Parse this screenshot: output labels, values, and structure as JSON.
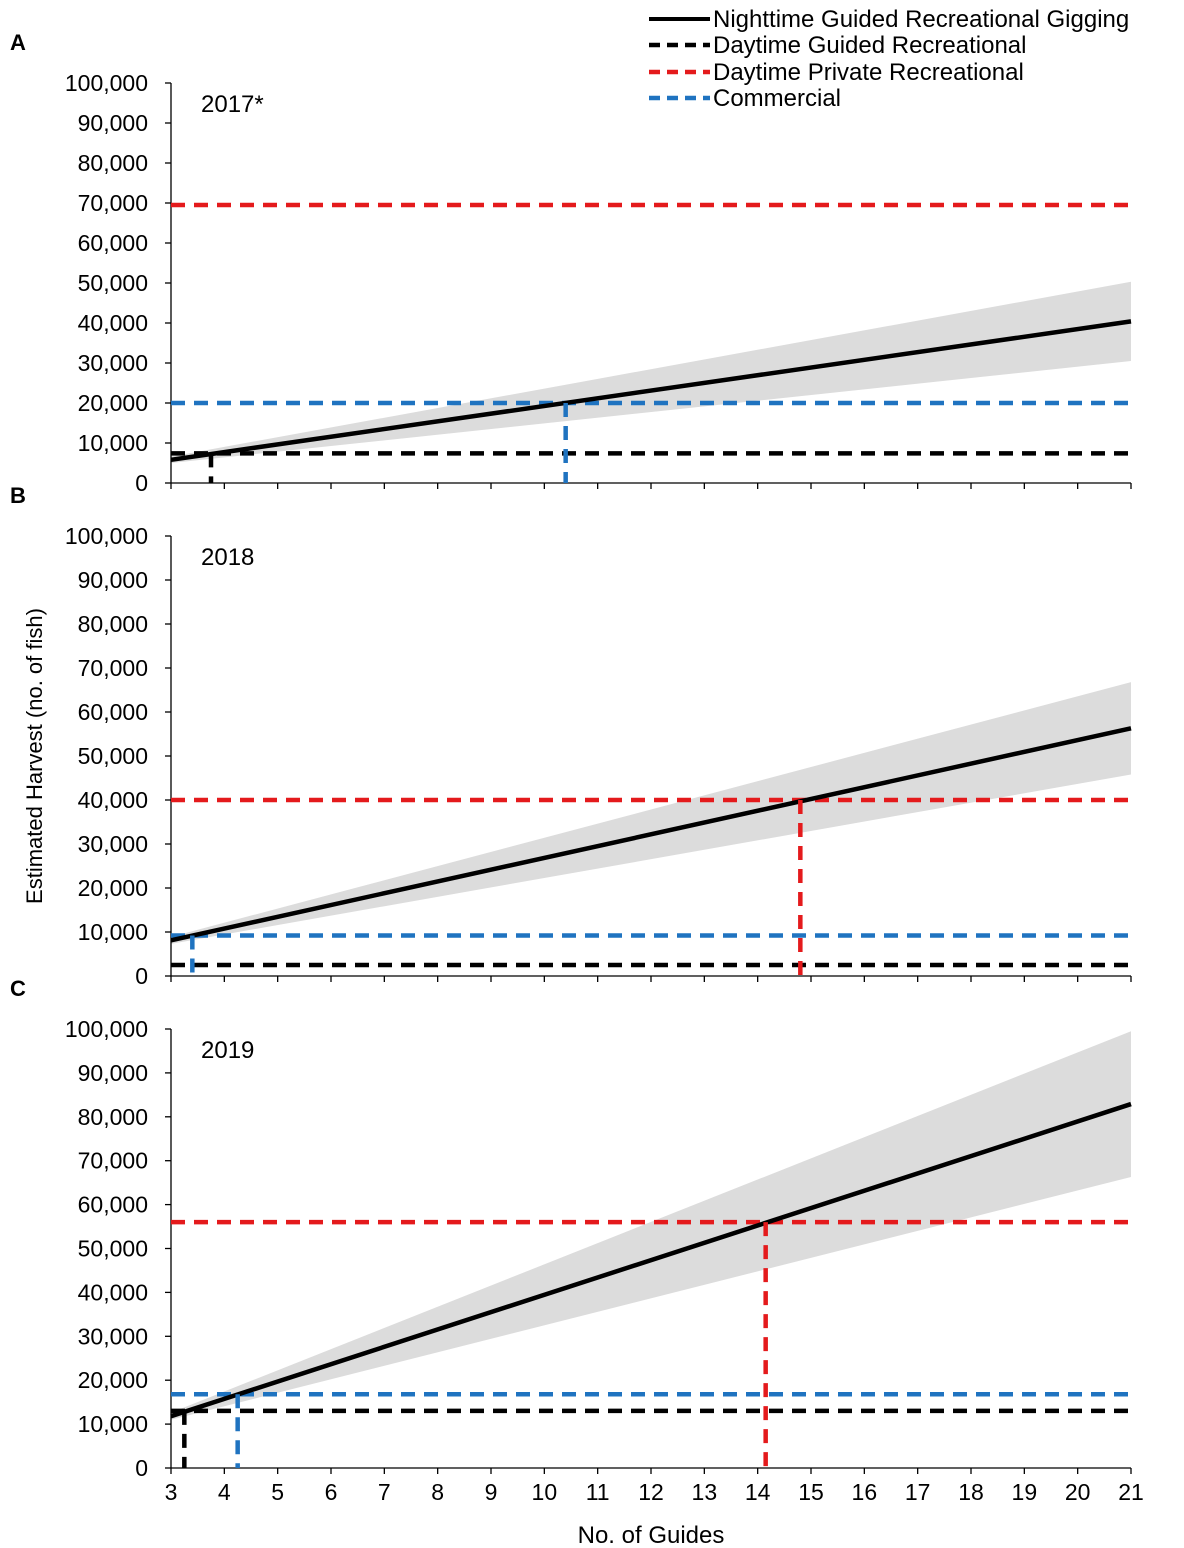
{
  "legend": {
    "placement": "top-right",
    "items": [
      {
        "label": "Nighttime Guided Recreational Gigging",
        "color": "#000000",
        "dash": "solid"
      },
      {
        "label": "Daytime Guided Recreational",
        "color": "#000000",
        "dash": "dashed"
      },
      {
        "label": "Daytime Private Recreational",
        "color": "#e41a1c",
        "dash": "dashed"
      },
      {
        "label": "Commercial",
        "color": "#1f73c0",
        "dash": "dashed"
      }
    ]
  },
  "colors": {
    "nighttime": "#000000",
    "daytime_guided": "#000000",
    "daytime_private": "#e41a1c",
    "commercial": "#1f73c0",
    "confidence_band": "#dcdcdc"
  },
  "ylabel": "Estimated Harvest (no. of fish)",
  "xlabel": "No. of Guides",
  "chart_data": [
    {
      "type": "line",
      "panel_letter": "A",
      "year_label": "2017*",
      "xlim": [
        3,
        21
      ],
      "ylim": [
        0,
        100000
      ],
      "x_ticks": [
        3,
        4,
        5,
        6,
        7,
        8,
        9,
        10,
        11,
        12,
        13,
        14,
        15,
        16,
        17,
        18,
        19,
        20,
        21
      ],
      "y_ticks": [
        0,
        10000,
        20000,
        30000,
        40000,
        50000,
        60000,
        70000,
        80000,
        90000,
        100000
      ],
      "y_tick_labels": [
        "0",
        "10,000",
        "20,000",
        "30,000",
        "40,000",
        "50,000",
        "60,000",
        "70,000",
        "80,000",
        "90,000",
        "100,000"
      ],
      "x_tick_labels_shown": false,
      "grid": false,
      "series": [
        {
          "name": "Nighttime Guided Recreational Gigging",
          "x": [
            3,
            21
          ],
          "y": [
            5800,
            40400
          ],
          "band_lower": [
            5000,
            30500
          ],
          "band_upper": [
            6600,
            50300
          ]
        },
        {
          "name": "Daytime Guided Recreational",
          "value": 7400,
          "intersect_x": 3.75
        },
        {
          "name": "Daytime Private Recreational",
          "value": 69500,
          "intersect_x": null
        },
        {
          "name": "Commercial",
          "value": 20000,
          "intersect_x": 10.4
        }
      ]
    },
    {
      "type": "line",
      "panel_letter": "B",
      "year_label": "2018",
      "xlim": [
        3,
        21
      ],
      "ylim": [
        0,
        100000
      ],
      "x_ticks": [
        3,
        4,
        5,
        6,
        7,
        8,
        9,
        10,
        11,
        12,
        13,
        14,
        15,
        16,
        17,
        18,
        19,
        20,
        21
      ],
      "y_ticks": [
        0,
        10000,
        20000,
        30000,
        40000,
        50000,
        60000,
        70000,
        80000,
        90000,
        100000
      ],
      "y_tick_labels": [
        "0",
        "10,000",
        "20,000",
        "30,000",
        "40,000",
        "50,000",
        "60,000",
        "70,000",
        "80,000",
        "90,000",
        "100,000"
      ],
      "x_tick_labels_shown": false,
      "grid": false,
      "series": [
        {
          "name": "Nighttime Guided Recreational Gigging",
          "x": [
            3,
            21
          ],
          "y": [
            8100,
            56300
          ],
          "band_lower": [
            7300,
            45800
          ],
          "band_upper": [
            8900,
            66800
          ]
        },
        {
          "name": "Daytime Guided Recreational",
          "value": 2500,
          "intersect_x": null
        },
        {
          "name": "Daytime Private Recreational",
          "value": 40000,
          "intersect_x": 14.8
        },
        {
          "name": "Commercial",
          "value": 9200,
          "intersect_x": 3.4
        }
      ]
    },
    {
      "type": "line",
      "panel_letter": "C",
      "year_label": "2019",
      "xlim": [
        3,
        21
      ],
      "ylim": [
        0,
        100000
      ],
      "x_ticks": [
        3,
        4,
        5,
        6,
        7,
        8,
        9,
        10,
        11,
        12,
        13,
        14,
        15,
        16,
        17,
        18,
        19,
        20,
        21
      ],
      "y_ticks": [
        0,
        10000,
        20000,
        30000,
        40000,
        50000,
        60000,
        70000,
        80000,
        90000,
        100000
      ],
      "y_tick_labels": [
        "0",
        "10,000",
        "20,000",
        "30,000",
        "40,000",
        "50,000",
        "60,000",
        "70,000",
        "80,000",
        "90,000",
        "100,000"
      ],
      "x_tick_labels": [
        "3",
        "4",
        "5",
        "6",
        "7",
        "8",
        "9",
        "10",
        "11",
        "12",
        "13",
        "14",
        "15",
        "16",
        "17",
        "18",
        "19",
        "20",
        "21"
      ],
      "x_tick_labels_shown": true,
      "grid": false,
      "series": [
        {
          "name": "Nighttime Guided Recreational Gigging",
          "x": [
            3,
            21
          ],
          "y": [
            11800,
            82900
          ],
          "band_lower": [
            11000,
            66300
          ],
          "band_upper": [
            12600,
            99500
          ]
        },
        {
          "name": "Daytime Guided Recreational",
          "value": 13000,
          "intersect_x": 3.25
        },
        {
          "name": "Daytime Private Recreational",
          "value": 56000,
          "intersect_x": 14.15
        },
        {
          "name": "Commercial",
          "value": 16800,
          "intersect_x": 4.25
        }
      ]
    }
  ]
}
